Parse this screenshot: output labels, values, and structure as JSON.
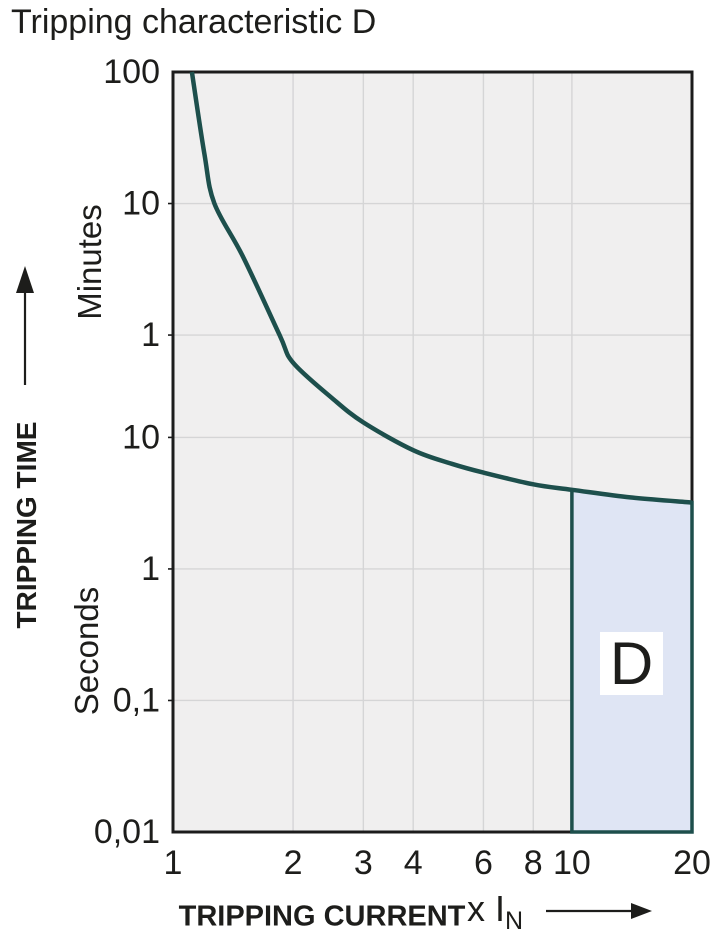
{
  "title": "Tripping characteristic D",
  "chart_data": {
    "type": "line",
    "title": "Tripping characteristic D",
    "x_axis": {
      "label": "TRIPPING CURRENT",
      "unit_prefix": "x I",
      "unit_sub": "N",
      "scale": "log",
      "lim": [
        1,
        20
      ],
      "ticks": [
        {
          "label": "1",
          "value": 1
        },
        {
          "label": "2",
          "value": 2
        },
        {
          "label": "3",
          "value": 3
        },
        {
          "label": "4",
          "value": 4
        },
        {
          "label": "6",
          "value": 6
        },
        {
          "label": "8",
          "value": 8
        },
        {
          "label": "10",
          "value": 10
        },
        {
          "label": "20",
          "value": 20
        }
      ]
    },
    "y_axis": {
      "label": "TRIPPING TIME",
      "scale": "log",
      "lim_seconds": [
        0.01,
        6000
      ],
      "tick_groups": [
        {
          "unit": "Minutes",
          "ticks": [
            {
              "label": "100",
              "seconds": 6000
            },
            {
              "label": "10",
              "seconds": 600
            },
            {
              "label": "1",
              "seconds": 60
            }
          ]
        },
        {
          "unit": "Seconds",
          "ticks": [
            {
              "label": "10",
              "seconds": 10
            },
            {
              "label": "1",
              "seconds": 1
            },
            {
              "label": "0,1",
              "seconds": 0.1
            },
            {
              "label": "0,01",
              "seconds": 0.01
            }
          ]
        }
      ]
    },
    "series": [
      {
        "name": "D tripping characteristic curve",
        "points": [
          [
            1.115,
            6000
          ],
          [
            1.2,
            1400
          ],
          [
            1.27,
            600
          ],
          [
            1.5,
            235
          ],
          [
            1.85,
            60
          ],
          [
            2,
            37
          ],
          [
            2.5,
            20
          ],
          [
            3,
            13
          ],
          [
            4,
            8
          ],
          [
            5,
            6.3
          ],
          [
            6,
            5.4
          ],
          [
            8,
            4.4
          ],
          [
            10,
            4.0
          ],
          [
            14,
            3.5
          ],
          [
            20,
            3.2
          ]
        ]
      }
    ],
    "region": {
      "label": "D",
      "x_range": [
        10,
        20
      ],
      "bounded_above_by": "curve"
    },
    "grid": "on",
    "colors": {
      "curve": "#1d4f4c",
      "region_fill": "#dfe5f4",
      "region_border": "#1d4f4c",
      "plot_bg": "#f0efef",
      "gridline": "#d5d5d6",
      "border": "#1c1c1c",
      "text": "#1d1d1b"
    }
  }
}
